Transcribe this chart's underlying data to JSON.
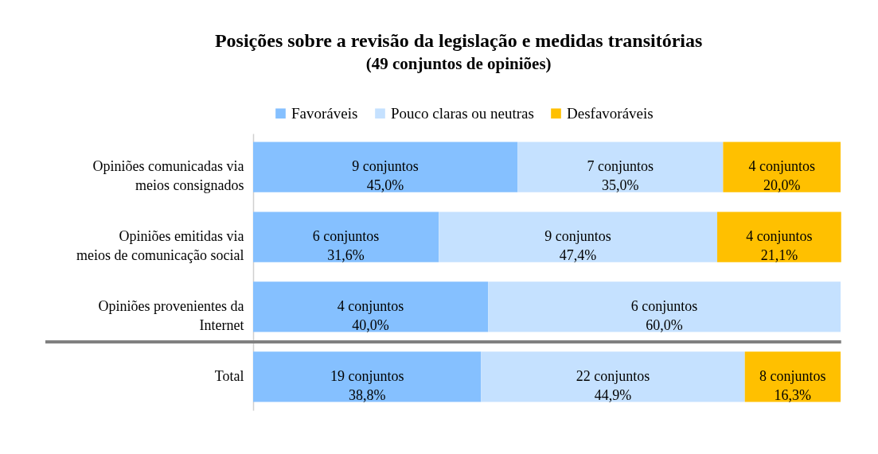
{
  "chart_data": {
    "type": "bar",
    "orientation": "horizontal",
    "stacked": true,
    "title": "Posições sobre a revisão da legislação e medidas transitórias",
    "subtitle": "(49 conjuntos de opiniões)",
    "categories": [
      "Opiniões comunicadas via\nmeios consignados",
      "Opiniões emitidas via\nmeios de comunicação social",
      "Opiniões provenientes da\nInternet",
      "Total"
    ],
    "xlim": [
      0,
      100
    ],
    "tick_labels": "y",
    "legend": "top",
    "series": [
      {
        "name": "Favoráveis",
        "color": "#85c0ff",
        "values": [
          45.0,
          31.6,
          40.0,
          38.8
        ],
        "value_labels": [
          "9 conjuntos\n45,0%",
          "6 conjuntos\n31,6%",
          "4 conjuntos\n40,0%",
          "19 conjuntos\n38,8%"
        ]
      },
      {
        "name": "Pouco claras ou neutras",
        "color": "#c5e1ff",
        "values": [
          35.0,
          47.4,
          60.0,
          44.9
        ],
        "value_labels": [
          "7 conjuntos\n35,0%",
          "9 conjuntos\n47,4%",
          "6 conjuntos\n60,0%",
          "22 conjuntos\n44,9%"
        ]
      },
      {
        "name": "Desfavoráveis",
        "color": "#ffc000",
        "values": [
          20.0,
          21.1,
          null,
          16.3
        ],
        "value_labels": [
          "4 conjuntos\n20,0%",
          "4 conjuntos\n21,1%",
          null,
          "8 conjuntos\n16,3%"
        ]
      }
    ]
  }
}
